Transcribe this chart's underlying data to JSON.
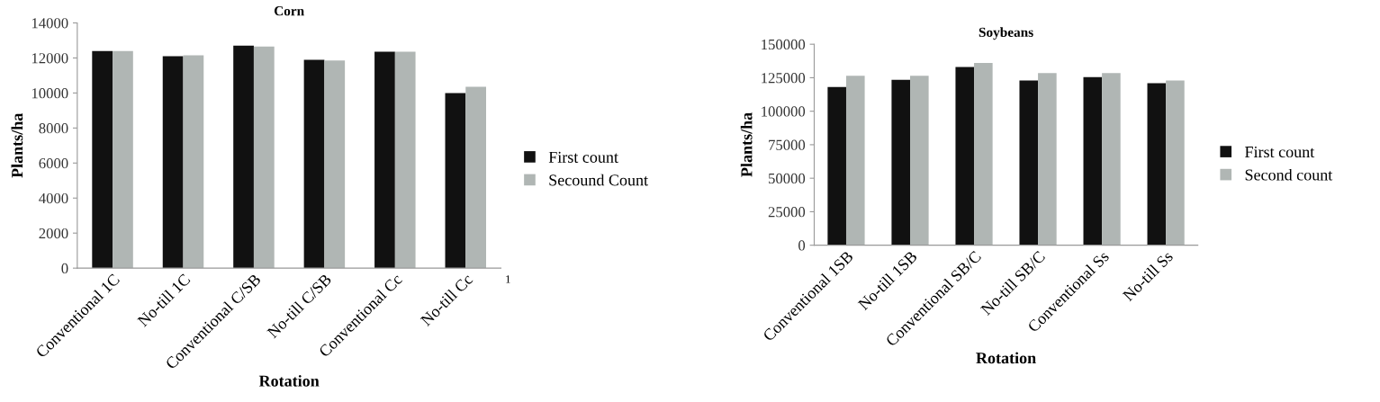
{
  "chart_data": [
    {
      "type": "bar",
      "title": "Corn",
      "xlabel": "Rotation",
      "ylabel": "Plants/ha",
      "categories": [
        "Conventional 1C",
        "No-till 1C",
        "Conventional C/SB",
        "No-till C/SB",
        "Conventional Cc",
        "No-till Cc"
      ],
      "series": [
        {
          "name": "First count",
          "color": "#111111",
          "values": [
            12400,
            12100,
            12700,
            11900,
            12350,
            10000
          ]
        },
        {
          "name": "Secound Count",
          "color": "#b0b6b4",
          "values": [
            12400,
            12150,
            12650,
            11850,
            12350,
            10350
          ]
        }
      ],
      "ylim": [
        0,
        14000
      ],
      "yticks": [
        0,
        2000,
        4000,
        6000,
        8000,
        10000,
        12000,
        14000
      ],
      "grid": false,
      "legend": "right",
      "annotations": [
        "1"
      ]
    },
    {
      "type": "bar",
      "title": "Soybeans",
      "xlabel": "Rotation",
      "ylabel": "Plants/ha",
      "categories": [
        "Conventional 1SB",
        "No-till 1SB",
        "Conventional SB/C",
        "No-till SB/C",
        "Conventional Ss",
        "No-till Ss"
      ],
      "series": [
        {
          "name": "First count",
          "color": "#111111",
          "values": [
            118000,
            123500,
            133000,
            123000,
            125500,
            121000
          ]
        },
        {
          "name": "Second count",
          "color": "#b0b6b4",
          "values": [
            126500,
            126500,
            136000,
            128500,
            128500,
            123000
          ]
        }
      ],
      "ylim": [
        0,
        150000
      ],
      "yticks": [
        0,
        25000,
        50000,
        75000,
        100000,
        125000,
        150000
      ],
      "grid": false,
      "legend": "right"
    }
  ]
}
